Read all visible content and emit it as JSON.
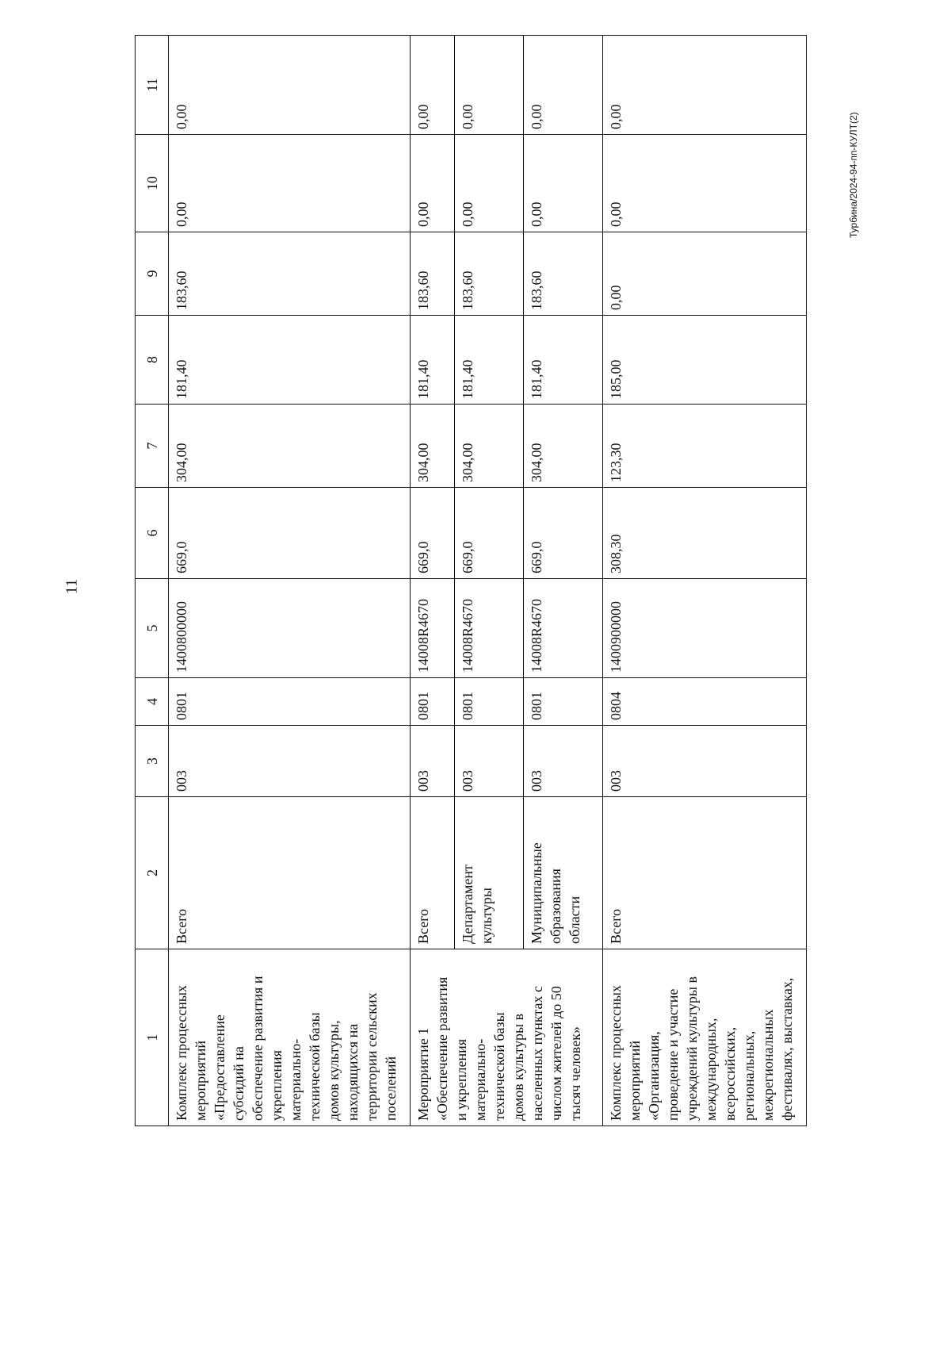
{
  "page_number": "11",
  "footer": "Турбина/2024-94-пп-КУЛТ(2)",
  "table": {
    "headers": [
      "1",
      "2",
      "3",
      "4",
      "5",
      "6",
      "7",
      "8",
      "9",
      "10",
      "11"
    ],
    "rows": [
      {
        "c1": "Комплекс процессных\nмероприятий\n«Предоставление\nсубсидий на\nобеспечение развития и\nукрепления\nматериально-\nтехнической базы\nдомов культуры,\nнаходящихся на\nтерритории сельских\nпоселений",
        "c2": "Всего",
        "c3": "003",
        "c4": "0801",
        "c5": "1400800000",
        "c6": "669,0",
        "c7": "304,00",
        "c8": "181,40",
        "c9": "183,60",
        "c10": "0,00",
        "c11": "0,00"
      },
      {
        "c1": "Мероприятие 1\n«Обеспечение развития\nи укрепления\nматериально-\nтехнической базы\nдомов культуры в\nнаселенных пунктах с\nчислом жителей до 50\nтысяч человек»",
        "c2": "Всего",
        "c3": "003",
        "c4": "0801",
        "c5": "14008R4670",
        "c6": "669,0",
        "c7": "304,00",
        "c8": "181,40",
        "c9": "183,60",
        "c10": "0,00",
        "c11": "0,00"
      },
      {
        "c2": "Департамент\nкультуры",
        "c3": "003",
        "c4": "0801",
        "c5": "14008R4670",
        "c6": "669,0",
        "c7": "304,00",
        "c8": "181,40",
        "c9": "183,60",
        "c10": "0,00",
        "c11": "0,00"
      },
      {
        "c2": "Муниципальные\nобразования\nобласти",
        "c3": "003",
        "c4": "0801",
        "c5": "14008R4670",
        "c6": "669,0",
        "c7": "304,00",
        "c8": "181,40",
        "c9": "183,60",
        "c10": "0,00",
        "c11": "0,00"
      },
      {
        "c1": "Комплекс процессных\nмероприятий\n«Организация,\nпроведение и участие\nучреждений культуры в\nмеждународных,\nвсероссийских,\nрегиональных,\nмежрегиональных\nфестивалях, выставках,",
        "c2": "Всего",
        "c3": "003",
        "c4": "0804",
        "c5": "1400900000",
        "c6": "308,30",
        "c7": "123,30",
        "c8": "185,00",
        "c9": "0,00",
        "c10": "0,00",
        "c11": "0,00"
      }
    ]
  }
}
